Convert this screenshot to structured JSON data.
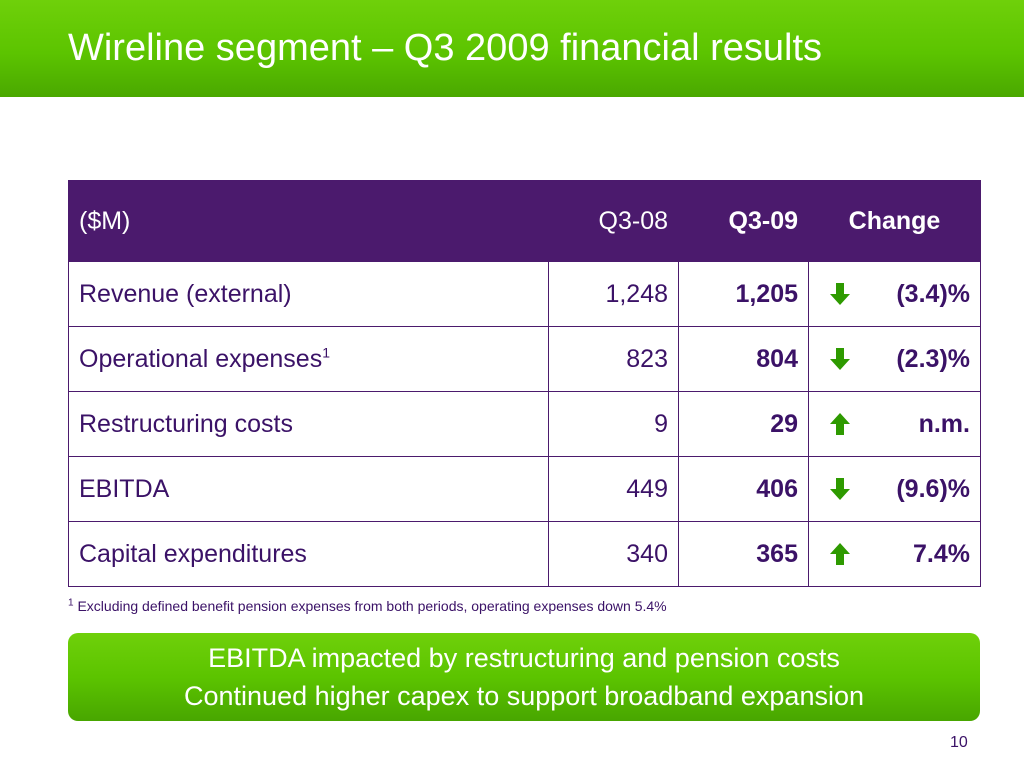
{
  "slide": {
    "title": "Wireline segment – Q3 2009 financial results",
    "page_number": "10"
  },
  "table": {
    "headers": {
      "unit": "($M)",
      "prev": "Q3-08",
      "curr": "Q3-09",
      "change": "Change"
    },
    "rows": [
      {
        "label": "Revenue (external)",
        "footnote_mark": "",
        "prev": "1,248",
        "curr": "1,205",
        "trend": "down",
        "change": "(3.4)%"
      },
      {
        "label": "Operational expenses",
        "footnote_mark": "1",
        "prev": "823",
        "curr": "804",
        "trend": "down",
        "change": "(2.3)%"
      },
      {
        "label": "Restructuring costs",
        "footnote_mark": "",
        "prev": "9",
        "curr": "29",
        "trend": "up",
        "change": "n.m."
      },
      {
        "label": "EBITDA",
        "footnote_mark": "",
        "prev": "449",
        "curr": "406",
        "trend": "down",
        "change": "(9.6)%"
      },
      {
        "label": "Capital expenditures",
        "footnote_mark": "",
        "prev": "340",
        "curr": "365",
        "trend": "up",
        "change": "7.4%"
      }
    ]
  },
  "footnote": {
    "mark": "1",
    "text": "Excluding defined benefit pension expenses from both periods, operating expenses down 5.4%"
  },
  "callout": {
    "line1": "EBITDA impacted by restructuring and pension costs",
    "line2": "Continued higher capex to support broadband expansion"
  },
  "colors": {
    "brand_green": "#5cc400",
    "brand_purple": "#4b1a6d",
    "arrow_green": "#2e9a00"
  },
  "icons": {
    "up": "arrow-up-icon",
    "down": "arrow-down-icon"
  }
}
